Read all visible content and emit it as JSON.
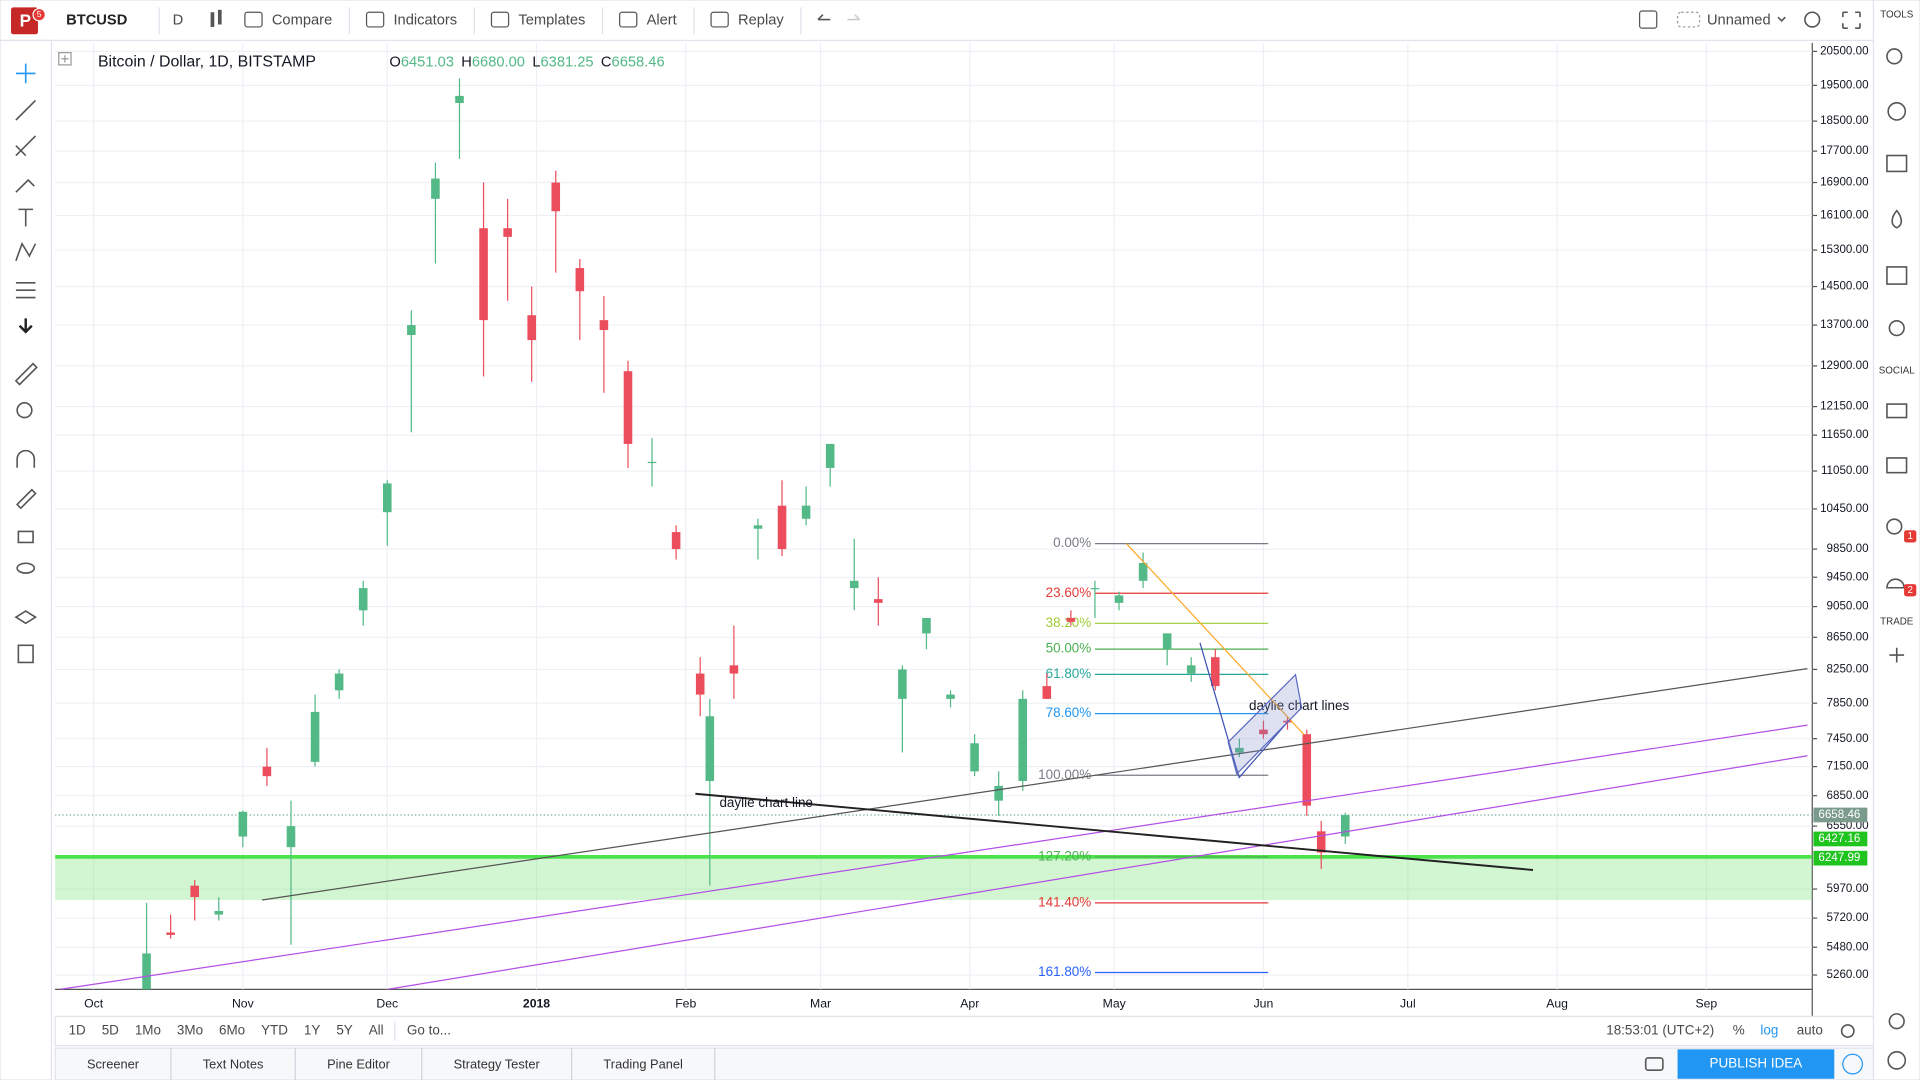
{
  "toolbar": {
    "logo_badge": "5",
    "symbol": "BTCUSD",
    "interval": "D",
    "items": [
      "Compare",
      "Indicators",
      "Templates",
      "Alert",
      "Replay"
    ],
    "layout": "Unnamed"
  },
  "side_panel": {
    "sections": [
      "TOOLS",
      "SOCIAL",
      "TRADE"
    ],
    "badges": [
      "1",
      "2"
    ]
  },
  "chart_data": {
    "type": "candlestick",
    "title": "Bitcoin / Dollar, 1D, BITSTAMP",
    "legend_ohlc": [
      {
        "key": "O",
        "value": 6451.03
      },
      {
        "key": "H",
        "value": 6680.0
      },
      {
        "key": "L",
        "value": 6381.25
      },
      {
        "key": "C",
        "value": 6658.46
      }
    ],
    "up_color": "#53b987",
    "down_color": "#eb4d5c",
    "log": true,
    "grid": true,
    "xlim": [
      "2017-09-23",
      "2018-09-23"
    ],
    "xticks": [
      {
        "value": "2017-10-01",
        "label": "Oct"
      },
      {
        "value": "2017-11-01",
        "label": "Nov"
      },
      {
        "value": "2017-12-01",
        "label": "Dec"
      },
      {
        "value": "2018-01-01",
        "label": "2018"
      },
      {
        "value": "2018-02-01",
        "label": "Feb"
      },
      {
        "value": "2018-03-01",
        "label": "Mar"
      },
      {
        "value": "2018-04-01",
        "label": "Apr"
      },
      {
        "value": "2018-05-01",
        "label": "May"
      },
      {
        "value": "2018-06-01",
        "label": "Jun"
      },
      {
        "value": "2018-07-01",
        "label": "Jul"
      },
      {
        "value": "2018-08-01",
        "label": "Aug"
      },
      {
        "value": "2018-09-01",
        "label": "Sep"
      }
    ],
    "ylim": [
      5150,
      20760
    ],
    "yticks": [
      {
        "value": 20500,
        "label": "20500.00"
      },
      {
        "value": 19500,
        "label": "19500.00"
      },
      {
        "value": 18500,
        "label": "18500.00"
      },
      {
        "value": 17700,
        "label": "17700.00"
      },
      {
        "value": 16900,
        "label": "16900.00"
      },
      {
        "value": 16100,
        "label": "16100.00"
      },
      {
        "value": 15300,
        "label": "15300.00"
      },
      {
        "value": 14500,
        "label": "14500.00"
      },
      {
        "value": 13700,
        "label": "13700.00"
      },
      {
        "value": 12900,
        "label": "12900.00"
      },
      {
        "value": 12150,
        "label": "12150.00"
      },
      {
        "value": 11650,
        "label": "11650.00"
      },
      {
        "value": 11050,
        "label": "11050.00"
      },
      {
        "value": 10450,
        "label": "10450.00"
      },
      {
        "value": 9850,
        "label": "9850.00"
      },
      {
        "value": 9450,
        "label": "9450.00"
      },
      {
        "value": 9050,
        "label": "9050.00"
      },
      {
        "value": 8650,
        "label": "8650.00"
      },
      {
        "value": 8250,
        "label": "8250.00"
      },
      {
        "value": 7850,
        "label": "7850.00"
      },
      {
        "value": 7450,
        "label": "7450.00"
      },
      {
        "value": 7150,
        "label": "7150.00"
      },
      {
        "value": 6850,
        "label": "6850.00"
      },
      {
        "value": 6550,
        "label": "6550.00"
      },
      {
        "value": 5970,
        "label": "5970.00"
      },
      {
        "value": 5720,
        "label": "5720.00"
      },
      {
        "value": 5480,
        "label": "5480.00"
      },
      {
        "value": 5260,
        "label": "5260.00"
      }
    ],
    "candles": {
      "x": [
        "2017-10-12",
        "2017-10-17",
        "2017-10-22",
        "2017-10-27",
        "2017-11-01",
        "2017-11-06",
        "2017-11-11",
        "2017-11-16",
        "2017-11-21",
        "2017-11-26",
        "2017-12-01",
        "2017-12-06",
        "2017-12-11",
        "2017-12-16",
        "2017-12-21",
        "2017-12-26",
        "2017-12-31",
        "2018-01-05",
        "2018-01-10",
        "2018-01-15",
        "2018-01-20",
        "2018-01-25",
        "2018-01-30",
        "2018-02-04",
        "2018-02-06",
        "2018-02-11",
        "2018-02-16",
        "2018-02-21",
        "2018-02-26",
        "2018-03-03",
        "2018-03-08",
        "2018-03-13",
        "2018-03-18",
        "2018-03-23",
        "2018-03-28",
        "2018-04-02",
        "2018-04-07",
        "2018-04-12",
        "2018-04-17",
        "2018-04-22",
        "2018-04-27",
        "2018-05-02",
        "2018-05-07",
        "2018-05-12",
        "2018-05-17",
        "2018-05-22",
        "2018-05-27",
        "2018-06-01",
        "2018-06-06",
        "2018-06-10",
        "2018-06-13",
        "2018-06-18"
      ],
      "open": [
        4800,
        5600,
        6000,
        5750,
        6450,
        7150,
        6350,
        7200,
        8000,
        9000,
        10400,
        13500,
        16500,
        19000,
        15800,
        15800,
        13900,
        16900,
        14900,
        13800,
        12800,
        11200,
        10100,
        8200,
        7000,
        8300,
        10150,
        10500,
        10300,
        11100,
        9300,
        9150,
        7900,
        8700,
        7900,
        7100,
        6800,
        7000,
        8050,
        8900,
        9300,
        9100,
        9400,
        8500,
        8200,
        8400,
        7300,
        7550,
        7650,
        7500,
        6500,
        6451.03
      ],
      "high": [
        5850,
        5750,
        6050,
        5900,
        6700,
        7350,
        6800,
        7950,
        8250,
        9400,
        10900,
        14000,
        17400,
        19700,
        16900,
        16500,
        14500,
        17200,
        15100,
        14300,
        13000,
        11600,
        10200,
        8400,
        7900,
        8800,
        10300,
        10900,
        10800,
        11500,
        10000,
        9450,
        8300,
        8900,
        8000,
        7500,
        7100,
        8000,
        8200,
        9000,
        9400,
        9250,
        9800,
        8700,
        8400,
        8500,
        7450,
        7650,
        7700,
        7550,
        6600,
        6680.0
      ],
      "low": [
        4800,
        5550,
        5700,
        5700,
        6350,
        6950,
        5500,
        7150,
        7900,
        8800,
        9900,
        11700,
        15000,
        17500,
        12700,
        14200,
        12600,
        14800,
        13400,
        12400,
        11100,
        10800,
        9700,
        7700,
        6000,
        7900,
        9700,
        9750,
        10200,
        10800,
        9000,
        8800,
        7300,
        8500,
        7800,
        7050,
        6650,
        6900,
        7900,
        8800,
        8900,
        9000,
        9300,
        8300,
        8100,
        8000,
        7250,
        7450,
        7550,
        6650,
        6150,
        6381.25
      ],
      "close": [
        5430,
        5580,
        5900,
        5780,
        6690,
        7050,
        6550,
        7750,
        8200,
        9300,
        10850,
        13700,
        17000,
        19200,
        13800,
        15600,
        13400,
        16200,
        14400,
        13600,
        11500,
        11200,
        9850,
        7950,
        7700,
        8200,
        10200,
        9850,
        10500,
        11500,
        9400,
        9100,
        8250,
        8900,
        7950,
        7400,
        6950,
        7900,
        7900,
        8850,
        9300,
        9200,
        9650,
        8700,
        8300,
        8050,
        7350,
        7500,
        7630,
        6750,
        6300,
        6658.46
      ]
    },
    "zone": {
      "ylim": [
        5875,
        6260
      ],
      "color": "#7ee57e"
    },
    "support_line": {
      "value": 6260,
      "color": "#4ce24c"
    },
    "last_price_line": {
      "value": 6658.46,
      "color": "#6aa58e"
    },
    "price_tags": [
      {
        "value": 6658.46,
        "color": "#7a9a8c"
      },
      {
        "value": 6427.16,
        "color": "#1fc41f"
      },
      {
        "value": 6247.99,
        "color": "#1fc41f"
      }
    ],
    "trend_lines": [
      {
        "x": [
          "2017-11-05",
          "2018-09-22"
        ],
        "y": [
          5875,
          8260
        ],
        "color": "#555555",
        "width": 1
      },
      {
        "x": [
          "2017-09-24",
          "2018-09-22"
        ],
        "y": [
          5150,
          7600
        ],
        "color": "#b44fe6",
        "width": 1
      },
      {
        "x": [
          "2017-12-01",
          "2018-09-22"
        ],
        "y": [
          5150,
          7265
        ],
        "color": "#b44fe6",
        "width": 1
      },
      {
        "x": [
          "2018-02-03",
          "2018-07-27"
        ],
        "y": [
          6870,
          6140
        ],
        "color": "#222222",
        "width": 1.6
      }
    ],
    "fibonacci": {
      "x": [
        "2018-04-27",
        "2018-06-02"
      ],
      "levels": [
        {
          "value": 9930,
          "label": "0.00%",
          "color": "#787b86"
        },
        {
          "value": 9230,
          "label": "23.60%",
          "color": "#e53935"
        },
        {
          "value": 8830,
          "label": "38.20%",
          "color": "#9ccc35"
        },
        {
          "value": 8500,
          "label": "50.00%",
          "color": "#4caf50"
        },
        {
          "value": 8190,
          "label": "61.80%",
          "color": "#26a69a"
        },
        {
          "value": 7730,
          "label": "78.60%",
          "color": "#2196f3"
        },
        {
          "value": 7060,
          "label": "100.00%",
          "color": "#787b86"
        },
        {
          "value": 6260,
          "label": "127.20%",
          "color": "#4caf50"
        },
        {
          "value": 5850,
          "label": "141.40%",
          "color": "#e53935"
        },
        {
          "value": 5280,
          "label": "161.80%",
          "color": "#2962ff"
        }
      ]
    },
    "annotations": [
      {
        "text": "daylie chart lines",
        "x": "2018-05-29",
        "y": 7810
      },
      {
        "text": "daylie chart line",
        "x": "2018-02-08",
        "y": 6770
      }
    ]
  },
  "range_bar": {
    "ranges": [
      "1D",
      "5D",
      "1Mo",
      "3Mo",
      "6Mo",
      "YTD",
      "1Y",
      "5Y",
      "All"
    ],
    "goto": "Go to...",
    "time": "18:53:01 (UTC+2)",
    "options": [
      "%",
      "log",
      "auto"
    ]
  },
  "bottom_tabs": [
    "Screener",
    "Text Notes",
    "Pine Editor",
    "Strategy Tester",
    "Trading Panel"
  ],
  "publish": "PUBLISH IDEA"
}
